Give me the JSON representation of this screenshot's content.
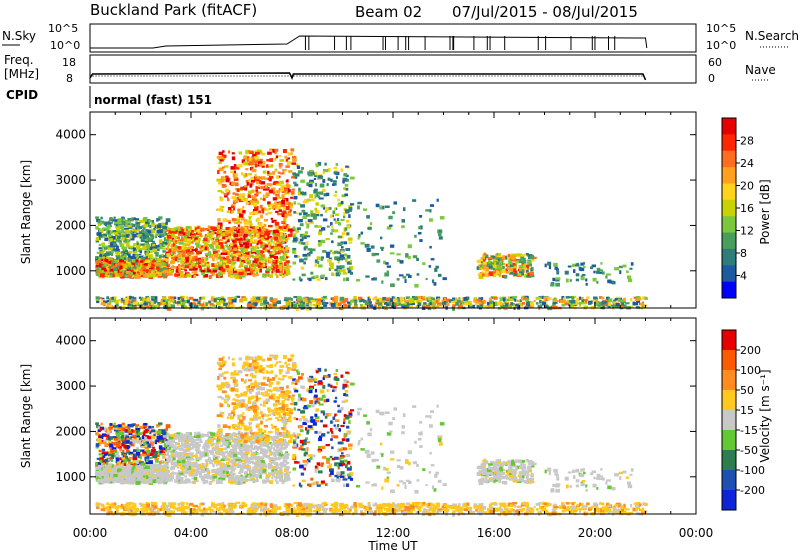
{
  "header": {
    "station": "Buckland Park (fitACF)",
    "beam": "Beam 02",
    "dates": "07/Jul/2015 - 08/Jul/2015"
  },
  "strips": {
    "nsky_label": "N.Sky",
    "freq_label_1": "Freq.",
    "freq_label_2": "[MHz]",
    "cpid_label": "CPID",
    "nsearch_label": "N.Search",
    "nave_label": "Nave",
    "nsky_top_tick": "10^5",
    "nsky_bottom_tick": "10^0",
    "freq_ticks": [
      "18",
      "8"
    ],
    "nave_ticks": [
      "60",
      "0"
    ],
    "cpid_text": "normal (fast) 151"
  },
  "colorbars": {
    "power": {
      "label": "Power [dB]",
      "ticks": [
        "28",
        "24",
        "20",
        "16",
        "12",
        "8",
        "4"
      ]
    },
    "velocity": {
      "label": "Velocity [m s⁻¹]",
      "ticks": [
        "200",
        "100",
        "50",
        "15",
        "-15",
        "-50",
        "-100",
        "-200"
      ]
    }
  },
  "colors": {
    "power_scale": [
      "#0000ff",
      "#1e5aa0",
      "#2e7d7a",
      "#4a9e5c",
      "#7cc83c",
      "#c8d200",
      "#ffd21e",
      "#ffa01e",
      "#ff6e1e",
      "#ff2800",
      "#e60000"
    ],
    "velocity_scale": [
      "#0b24d6",
      "#1e50b4",
      "#2e7d50",
      "#64c832",
      "#c8c8c8",
      "#ffc81e",
      "#ff8c1e",
      "#ff5a00",
      "#e60000"
    ]
  },
  "chart_data": [
    {
      "type": "heatmap",
      "name": "power",
      "ylabel": "Slant Range [km]",
      "xlabel": "Time UT",
      "x_ticks": [
        "00:00",
        "04:00",
        "08:00",
        "12:00",
        "16:00",
        "20:00",
        "00:00"
      ],
      "y_ticks": [
        "1000",
        "2000",
        "3000",
        "4000"
      ],
      "xlim_hours": [
        0,
        24
      ],
      "ylim_km": [
        180,
        4500
      ],
      "colorbar_range_db": [
        0,
        32
      ]
    },
    {
      "type": "heatmap",
      "name": "velocity",
      "ylabel": "Slant Range [km]",
      "xlabel": "Time UT",
      "x_ticks": [
        "00:00",
        "04:00",
        "08:00",
        "12:00",
        "16:00",
        "20:00",
        "00:00"
      ],
      "y_ticks": [
        "1000",
        "2000",
        "3000",
        "4000"
      ],
      "xlim_hours": [
        0,
        24
      ],
      "ylim_km": [
        180,
        4500
      ],
      "colorbar_range_ms": [
        -250,
        250
      ]
    }
  ]
}
